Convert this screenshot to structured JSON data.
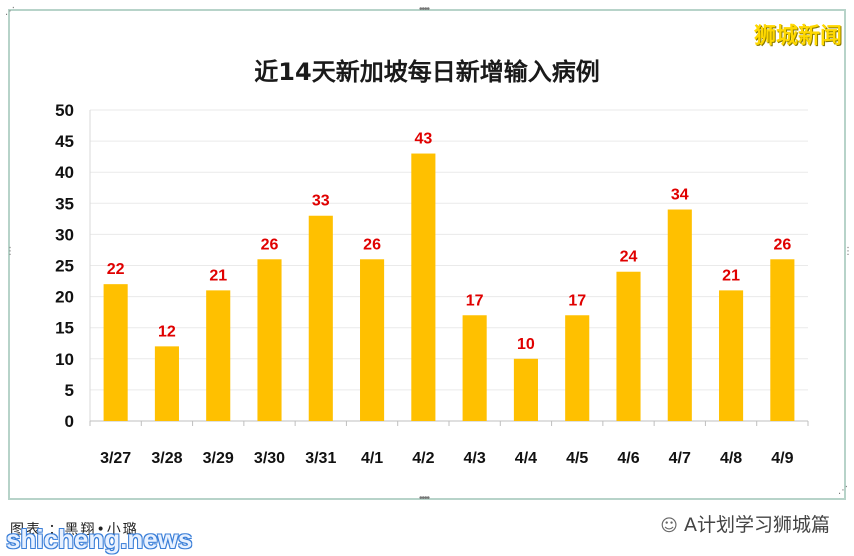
{
  "brand_watermark": "狮城新闻",
  "site_watermark": "shicheng.news",
  "footer": {
    "credit": "图表  ：黑翔•小璐",
    "account_icon": "wechat-icon",
    "account_name": "A计划学习狮城篇"
  },
  "colors": {
    "bar": "#ffc000",
    "data_label": "#e00000",
    "frame": "#b7d3c9"
  },
  "chart_data": {
    "type": "bar",
    "title": "近14天新加坡每日新增输入病例",
    "xlabel": "",
    "ylabel": "",
    "categories": [
      "3/27",
      "3/28",
      "3/29",
      "3/30",
      "3/31",
      "4/1",
      "4/2",
      "4/3",
      "4/4",
      "4/5",
      "4/6",
      "4/7",
      "4/8",
      "4/9"
    ],
    "values": [
      22,
      12,
      21,
      26,
      33,
      26,
      43,
      17,
      10,
      17,
      24,
      34,
      21,
      26
    ],
    "ylim": [
      0,
      50
    ],
    "yticks": [
      0,
      5,
      10,
      15,
      20,
      25,
      30,
      35,
      40,
      45,
      50
    ],
    "grid": true,
    "legend": "none"
  }
}
